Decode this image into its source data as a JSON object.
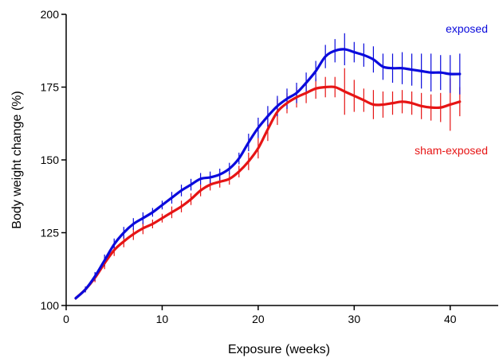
{
  "chart_data": {
    "type": "line",
    "xlabel": "Exposure (weeks)",
    "ylabel": "Body weight change (%)",
    "xlim": [
      0,
      45
    ],
    "ylim": [
      100,
      200
    ],
    "xticks": [
      0,
      10,
      20,
      30,
      40
    ],
    "yticks": [
      100,
      125,
      150,
      175,
      200
    ],
    "grid": false,
    "legend": "right, inline labels",
    "series": [
      {
        "name": "exposed",
        "color": "#0a0adc",
        "x": [
          1,
          2,
          3,
          4,
          5,
          6,
          7,
          8,
          9,
          10,
          11,
          12,
          13,
          14,
          15,
          16,
          17,
          18,
          19,
          20,
          21,
          22,
          23,
          24,
          25,
          26,
          27,
          28,
          29,
          30,
          31,
          32,
          33,
          34,
          35,
          36,
          37,
          38,
          39,
          40,
          41
        ],
        "y": [
          102.5,
          105.5,
          110,
          115.5,
          121,
          125,
          128,
          130,
          132,
          134.5,
          137,
          139.5,
          141.5,
          143.5,
          144,
          145,
          147,
          150.5,
          156,
          161,
          165,
          168.5,
          171,
          173,
          176.5,
          180.5,
          185.5,
          187.5,
          188,
          187,
          186,
          184.5,
          182,
          181.5,
          181.5,
          181,
          180.5,
          180,
          180,
          179.5,
          179.5
        ],
        "err": [
          0.5,
          1,
          1.5,
          2,
          2,
          2,
          2,
          2,
          1.5,
          1.5,
          2,
          2,
          2,
          2,
          2,
          2,
          2,
          2,
          3,
          3.5,
          3.5,
          3.5,
          3.5,
          3.5,
          3.5,
          3.5,
          4,
          4,
          5.5,
          3.5,
          4,
          4.5,
          4.5,
          5,
          5.5,
          5.5,
          6,
          6.5,
          6,
          6.5,
          7
        ]
      },
      {
        "name": "sham-exposed",
        "color": "#e61414",
        "x": [
          1,
          2,
          3,
          4,
          5,
          6,
          7,
          8,
          9,
          10,
          11,
          12,
          13,
          14,
          15,
          16,
          17,
          18,
          19,
          20,
          21,
          22,
          23,
          24,
          25,
          26,
          27,
          28,
          29,
          30,
          31,
          32,
          33,
          34,
          35,
          36,
          37,
          38,
          39,
          40,
          41
        ],
        "y": [
          102.5,
          105.5,
          109.5,
          114.5,
          119,
          122,
          124.5,
          126.5,
          128,
          130,
          132,
          134,
          136.5,
          139.5,
          141.5,
          142.5,
          143.5,
          146,
          149.5,
          154,
          160.5,
          166.5,
          169.5,
          171.5,
          173,
          174.5,
          175,
          175,
          173.5,
          172,
          170.5,
          169,
          169,
          169.5,
          170,
          169.5,
          168.5,
          168,
          168,
          169,
          170
        ],
        "err": [
          0.5,
          1,
          1.5,
          2,
          2,
          2,
          2,
          2,
          1.5,
          1.5,
          2,
          2,
          2,
          2,
          2,
          2,
          2,
          2,
          3,
          3.5,
          4,
          4.5,
          3.5,
          3.5,
          3.5,
          3.5,
          3.5,
          3.5,
          8,
          5.5,
          4,
          5,
          4.5,
          4,
          4,
          4,
          4.5,
          4.5,
          5,
          9,
          5
        ]
      }
    ]
  }
}
